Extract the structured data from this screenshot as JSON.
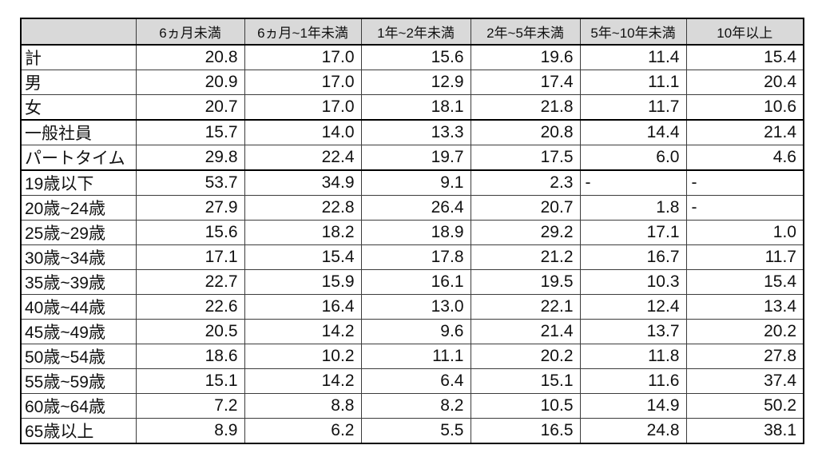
{
  "chart_data": {
    "type": "table",
    "corner_label": "",
    "columns": [
      "6ヵ月未満",
      "6ヵ月~1年未満",
      "1年~2年未満",
      "2年~5年未満",
      "5年~10年未満",
      "10年以上"
    ],
    "group_sizes": [
      3,
      2,
      11
    ],
    "rows": [
      {
        "label": "計",
        "values": [
          "20.8",
          "17.0",
          "15.6",
          "19.6",
          "11.4",
          "15.4"
        ]
      },
      {
        "label": "男",
        "values": [
          "20.9",
          "17.0",
          "12.9",
          "17.4",
          "11.1",
          "20.4"
        ]
      },
      {
        "label": "女",
        "values": [
          "20.7",
          "17.0",
          "18.1",
          "21.8",
          "11.7",
          "10.6"
        ]
      },
      {
        "label": "一般社員",
        "values": [
          "15.7",
          "14.0",
          "13.3",
          "20.8",
          "14.4",
          "21.4"
        ]
      },
      {
        "label": "パートタイム",
        "values": [
          "29.8",
          "22.4",
          "19.7",
          "17.5",
          "6.0",
          "4.6"
        ]
      },
      {
        "label": "19歳以下",
        "values": [
          "53.7",
          "34.9",
          "9.1",
          "2.3",
          "-",
          "-"
        ]
      },
      {
        "label": "20歳~24歳",
        "values": [
          "27.9",
          "22.8",
          "26.4",
          "20.7",
          "1.8",
          "-"
        ]
      },
      {
        "label": "25歳~29歳",
        "values": [
          "15.6",
          "18.2",
          "18.9",
          "29.2",
          "17.1",
          "1.0"
        ]
      },
      {
        "label": "30歳~34歳",
        "values": [
          "17.1",
          "15.4",
          "17.8",
          "21.2",
          "16.7",
          "11.7"
        ]
      },
      {
        "label": "35歳~39歳",
        "values": [
          "22.7",
          "15.9",
          "16.1",
          "19.5",
          "10.3",
          "15.4"
        ]
      },
      {
        "label": "40歳~44歳",
        "values": [
          "22.6",
          "16.4",
          "13.0",
          "22.1",
          "12.4",
          "13.4"
        ]
      },
      {
        "label": "45歳~49歳",
        "values": [
          "20.5",
          "14.2",
          "9.6",
          "21.4",
          "13.7",
          "20.2"
        ]
      },
      {
        "label": "50歳~54歳",
        "values": [
          "18.6",
          "10.2",
          "11.1",
          "20.2",
          "11.8",
          "27.8"
        ]
      },
      {
        "label": "55歳~59歳",
        "values": [
          "15.1",
          "14.2",
          "6.4",
          "15.1",
          "11.6",
          "37.4"
        ]
      },
      {
        "label": "60歳~64歳",
        "values": [
          "7.2",
          "8.8",
          "8.2",
          "10.5",
          "14.9",
          "50.2"
        ]
      },
      {
        "label": "65歳以上",
        "values": [
          "8.9",
          "6.2",
          "5.5",
          "16.5",
          "24.8",
          "38.1"
        ]
      }
    ]
  },
  "colors": {
    "header_bg": "#d9d9d9",
    "border_thick": "#000000",
    "border_thin": "#3c3c3c",
    "text": "#111111",
    "page_bg": "#ffffff"
  }
}
